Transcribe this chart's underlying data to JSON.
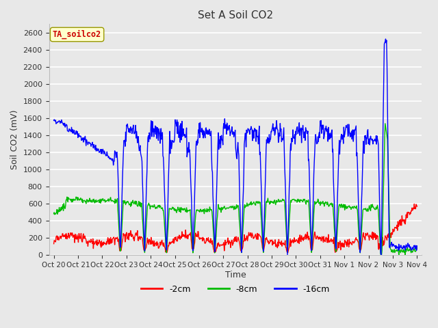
{
  "title": "Set A Soil CO2",
  "ylabel": "Soil CO2 (mV)",
  "xlabel": "Time",
  "legend_label": "TA_soilco2",
  "series_labels": [
    "-2cm",
    "-8cm",
    "-16cm"
  ],
  "series_colors": [
    "#ff0000",
    "#00bb00",
    "#0000ff"
  ],
  "ylim": [
    0,
    2700
  ],
  "background_color": "#e8e8e8",
  "plot_bg_color": "#e8e8e8",
  "grid_color": "#ffffff",
  "xtick_labels": [
    "Oct 20",
    "Oct 21",
    "Oct 22",
    "Oct 23",
    "Oct 24",
    "Oct 25",
    "Oct 26",
    "Oct 27",
    "Oct 28",
    "Oct 29",
    "Oct 30",
    "Oct 31",
    "Nov 1",
    "Nov 2",
    "Nov 3",
    "Nov 4"
  ],
  "annotation_box_color": "#ffffcc",
  "annotation_text_color": "#cc0000",
  "figwidth": 6.4,
  "figheight": 4.8,
  "dpi": 100
}
